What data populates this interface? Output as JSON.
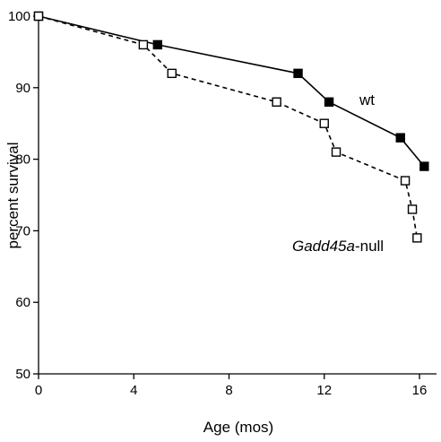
{
  "chart_data": {
    "type": "line",
    "xlabel": "Age (mos)",
    "ylabel": "percent survival",
    "xlim": [
      0,
      16.4
    ],
    "ylim": [
      50,
      100
    ],
    "xticks": [
      0,
      4,
      8,
      12,
      16
    ],
    "yticks": [
      50,
      60,
      70,
      80,
      90,
      100
    ],
    "grid": false,
    "series": [
      {
        "name": "wt",
        "line_style": "solid",
        "marker": "filled-square",
        "x": [
          0,
          5.0,
          10.9,
          12.2,
          15.2,
          16.2
        ],
        "y": [
          100,
          96,
          92,
          88,
          83,
          79
        ]
      },
      {
        "name": "Gadd45a-null",
        "name_parts": [
          "Gadd45a",
          "-null"
        ],
        "line_style": "dashed",
        "marker": "open-square",
        "x": [
          0,
          4.4,
          5.6,
          10.0,
          12.0,
          12.5,
          15.4,
          15.7,
          15.9
        ],
        "y": [
          100,
          96,
          92,
          88,
          85,
          81,
          77,
          73,
          69
        ]
      }
    ]
  }
}
